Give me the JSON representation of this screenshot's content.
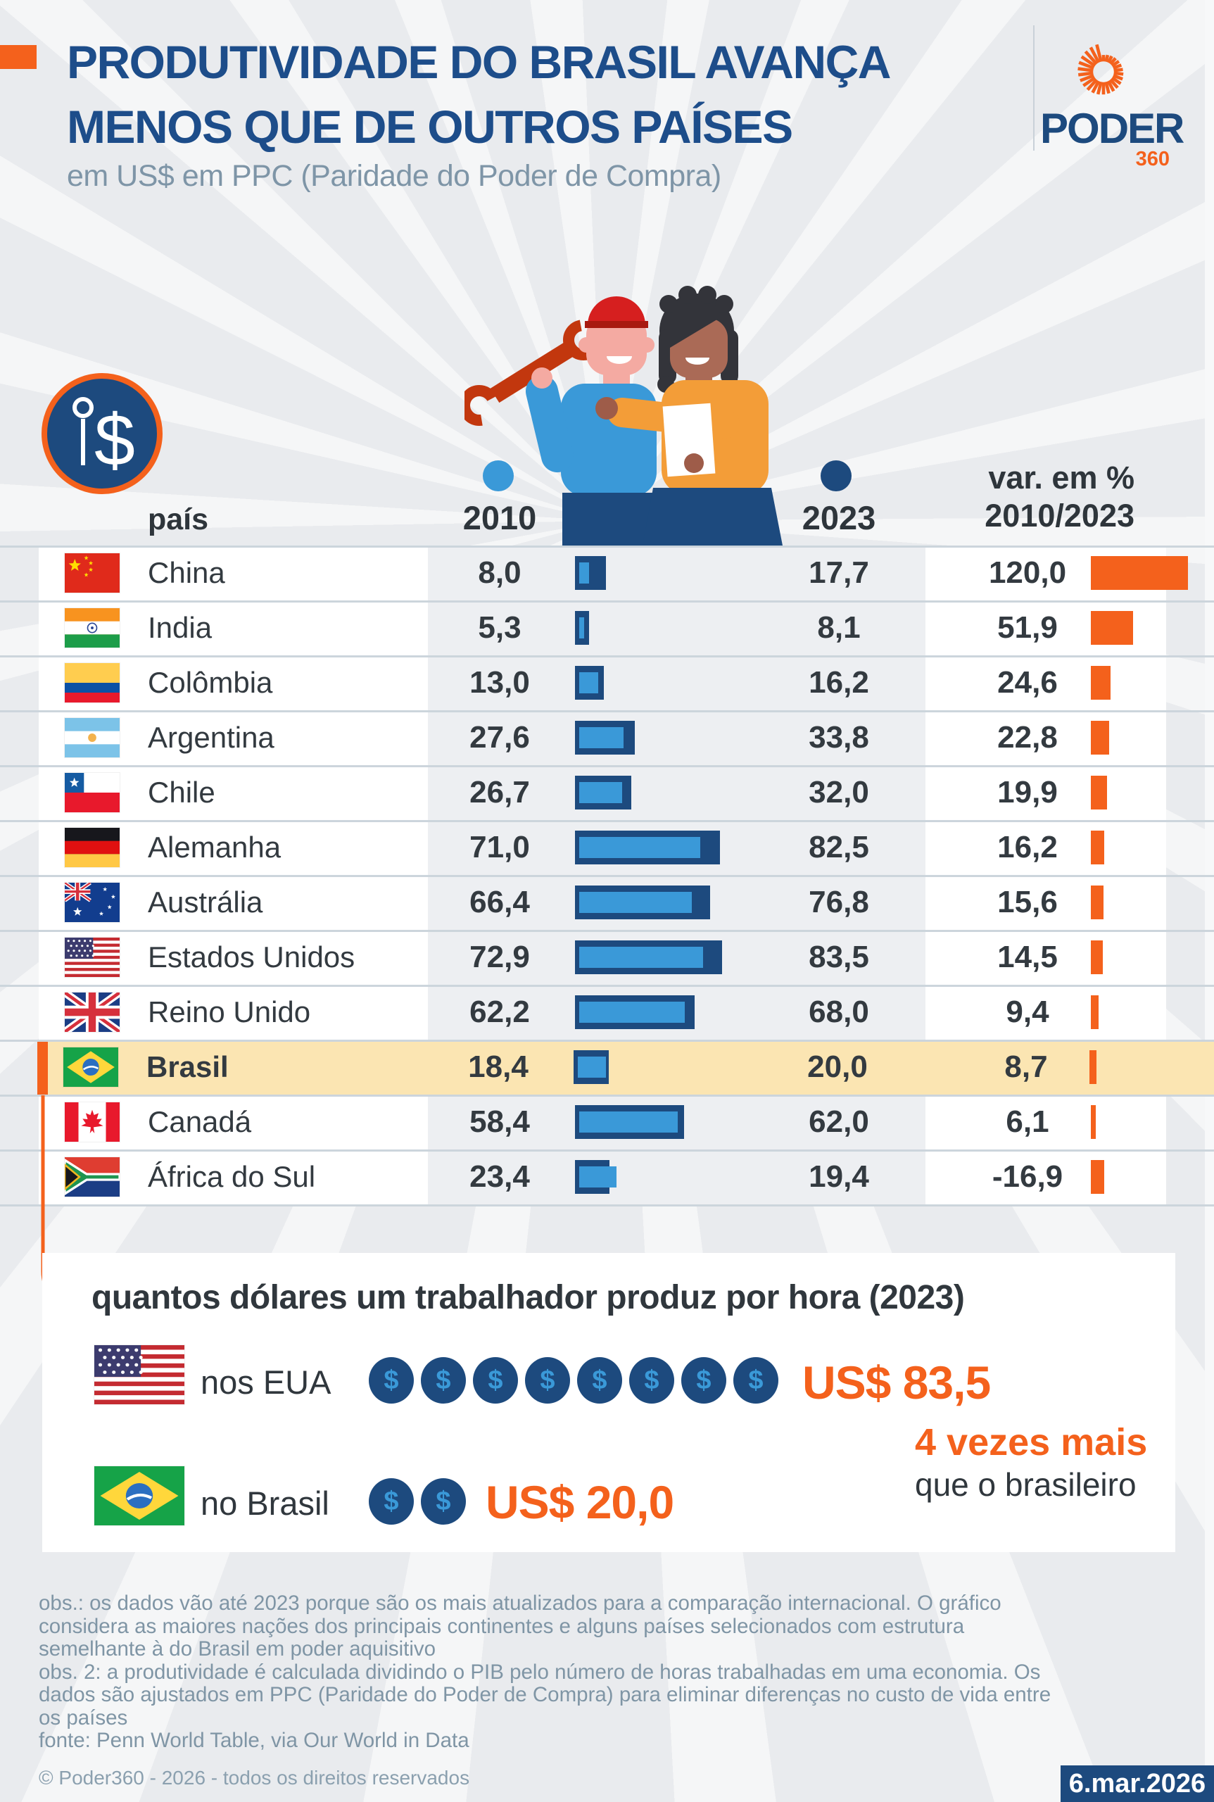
{
  "header": {
    "title_line1": "PRODUTIVIDADE DO BRASIL AVANÇA",
    "title_line2": "MENOS QUE DE OUTROS PAÍSES",
    "subtitle": "em US$ em PPC (Paridade do Poder de Compra)",
    "logo_text": "PODER",
    "logo_suffix": "360"
  },
  "table": {
    "columns": {
      "country": "país",
      "y2010": "2010",
      "y2023": "2023",
      "var_line1": "var. em %",
      "var_line2": "2010/2023"
    },
    "rows": [
      {
        "country": "China",
        "flag": "cn",
        "v2010": 8.0,
        "d2010": "8,0",
        "v2023": 17.7,
        "d2023": "17,7",
        "varn": 120.0,
        "dvar": "120,0",
        "highlight": false
      },
      {
        "country": "India",
        "flag": "in",
        "v2010": 5.3,
        "d2010": "5,3",
        "v2023": 8.1,
        "d2023": "8,1",
        "varn": 51.9,
        "dvar": "51,9",
        "highlight": false
      },
      {
        "country": "Colômbia",
        "flag": "co",
        "v2010": 13.0,
        "d2010": "13,0",
        "v2023": 16.2,
        "d2023": "16,2",
        "varn": 24.6,
        "dvar": "24,6",
        "highlight": false
      },
      {
        "country": "Argentina",
        "flag": "ar",
        "v2010": 27.6,
        "d2010": "27,6",
        "v2023": 33.8,
        "d2023": "33,8",
        "varn": 22.8,
        "dvar": "22,8",
        "highlight": false
      },
      {
        "country": "Chile",
        "flag": "cl",
        "v2010": 26.7,
        "d2010": "26,7",
        "v2023": 32.0,
        "d2023": "32,0",
        "varn": 19.9,
        "dvar": "19,9",
        "highlight": false
      },
      {
        "country": "Alemanha",
        "flag": "de",
        "v2010": 71.0,
        "d2010": "71,0",
        "v2023": 82.5,
        "d2023": "82,5",
        "varn": 16.2,
        "dvar": "16,2",
        "highlight": false
      },
      {
        "country": "Austrália",
        "flag": "au",
        "v2010": 66.4,
        "d2010": "66,4",
        "v2023": 76.8,
        "d2023": "76,8",
        "varn": 15.6,
        "dvar": "15,6",
        "highlight": false
      },
      {
        "country": "Estados Unidos",
        "flag": "us",
        "v2010": 72.9,
        "d2010": "72,9",
        "v2023": 83.5,
        "d2023": "83,5",
        "varn": 14.5,
        "dvar": "14,5",
        "highlight": false
      },
      {
        "country": "Reino Unido",
        "flag": "gb",
        "v2010": 62.2,
        "d2010": "62,2",
        "v2023": 68.0,
        "d2023": "68,0",
        "varn": 9.4,
        "dvar": "9,4",
        "highlight": false
      },
      {
        "country": "Brasil",
        "flag": "br",
        "v2010": 18.4,
        "d2010": "18,4",
        "v2023": 20.0,
        "d2023": "20,0",
        "varn": 8.7,
        "dvar": "8,7",
        "highlight": true
      },
      {
        "country": "Canadá",
        "flag": "ca",
        "v2010": 58.4,
        "d2010": "58,4",
        "v2023": 62.0,
        "d2023": "62,0",
        "varn": 6.1,
        "dvar": "6,1",
        "highlight": false
      },
      {
        "country": "África do Sul",
        "flag": "za",
        "v2010": 23.4,
        "d2010": "23,4",
        "v2023": 19.4,
        "d2023": "19,4",
        "varn": -16.9,
        "dvar": "-16,9",
        "highlight": false
      }
    ]
  },
  "bottom": {
    "heading": "quantos dólares um trabalhador produz por hora (2023)",
    "rows": [
      {
        "label": "nos EUA",
        "flag": "us",
        "coins": 8,
        "value": "US$ 83,5"
      },
      {
        "label": "no Brasil",
        "flag": "br",
        "coins": 2,
        "value": "US$ 20,0"
      }
    ],
    "callout_line1": "4 vezes mais",
    "callout_line2": "que o brasileiro"
  },
  "footnotes": [
    "obs.: os dados vão até 2023 porque são os mais atualizados para a comparação internacional. O gráfico",
    "considera as maiores nações dos principais continentes e alguns países selecionados com estrutura",
    "semelhante à do Brasil em poder aquisitivo",
    "obs. 2: a produtividade é calculada dividindo o PIB pelo número de horas trabalhadas em uma economia. Os",
    "dados são ajustados em PPC (Paridade do Poder de Compra) para eliminar diferenças no custo de vida entre",
    "os países",
    "fonte: Penn World Table, via Our World in Data"
  ],
  "footer": {
    "copyright": "© Poder360 - 2026 - todos os direitos reservados",
    "date": "6.mar.2026"
  },
  "colors": {
    "accent_orange": "#f4611c",
    "navy": "#1d4a7e",
    "title_blue": "#1d4d8a",
    "light_blue": "#3a99d8",
    "highlight_yellow": "#fbe5b2",
    "page_bg": "#e9ebee"
  },
  "chart_data": {
    "type": "bar",
    "title": "PRODUTIVIDADE DO BRASIL AVANÇA MENOS QUE DE OUTROS PAÍSES",
    "subtitle": "em US$ em PPC (Paridade do Poder de Compra)",
    "unit": "US$ por hora trabalhada (PPC)",
    "categories": [
      "China",
      "India",
      "Colômbia",
      "Argentina",
      "Chile",
      "Alemanha",
      "Austrália",
      "Estados Unidos",
      "Reino Unido",
      "Brasil",
      "Canadá",
      "África do Sul"
    ],
    "series": [
      {
        "name": "2010",
        "values": [
          8.0,
          5.3,
          13.0,
          27.6,
          26.7,
          71.0,
          66.4,
          72.9,
          62.2,
          18.4,
          58.4,
          23.4
        ]
      },
      {
        "name": "2023",
        "values": [
          17.7,
          8.1,
          16.2,
          33.8,
          32.0,
          82.5,
          76.8,
          83.5,
          68.0,
          20.0,
          62.0,
          19.4
        ]
      },
      {
        "name": "var. em % 2010/2023",
        "values": [
          120.0,
          51.9,
          24.6,
          22.8,
          19.9,
          16.2,
          15.6,
          14.5,
          9.4,
          8.7,
          6.1,
          -16.9
        ]
      }
    ],
    "highlight_category": "Brasil",
    "annotations": {
      "usa_hourly_2023": 83.5,
      "brazil_hourly_2023": 20.0,
      "comparison": "4 vezes mais que o brasileiro"
    },
    "legend_position": "column headers with dots (light blue = 2010, navy = 2023)",
    "grid": false
  }
}
